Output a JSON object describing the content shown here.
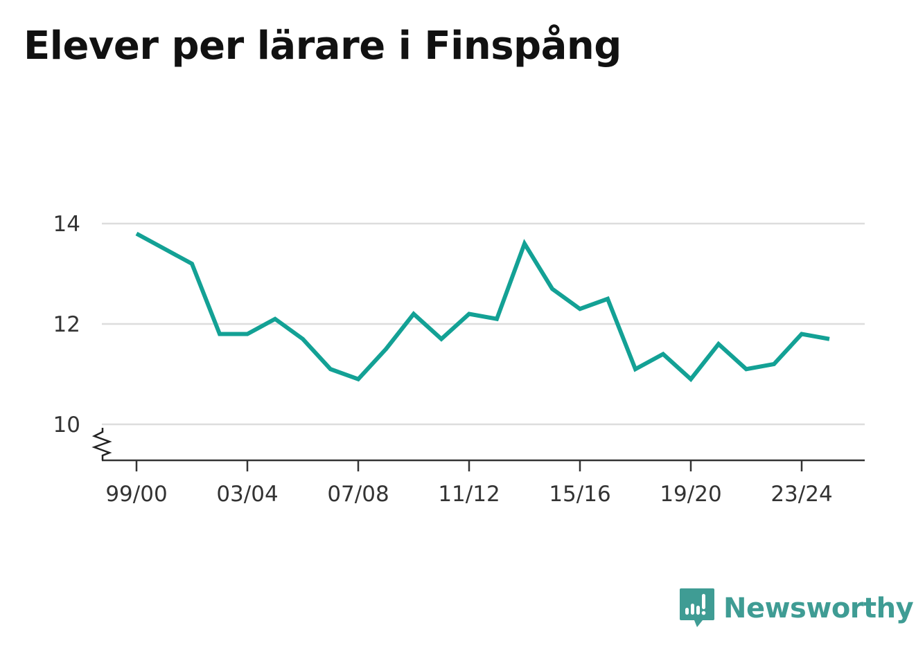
{
  "page": {
    "title": "Elever per lärare i Finspång"
  },
  "brand": {
    "name": "Newsworthy",
    "icon": "bar-chart-badge-icon",
    "color": "#3f9c94"
  },
  "chart_data": {
    "type": "line",
    "title": "Elever per lärare i Finspång",
    "xlabel": "",
    "ylabel": "",
    "x_tick_labels": [
      "99/00",
      "03/04",
      "07/08",
      "11/12",
      "15/16",
      "19/20",
      "23/24"
    ],
    "y_tick_labels": [
      "10",
      "12",
      "14"
    ],
    "y_ticks": [
      10,
      12,
      14
    ],
    "ylim": [
      9.3,
      14.2
    ],
    "y_axis_break": true,
    "grid": true,
    "legend": "none",
    "line_color": "#13a195",
    "grid_color": "#dddddd",
    "x": [
      "99/00",
      "00/01",
      "01/02",
      "02/03",
      "03/04",
      "04/05",
      "05/06",
      "06/07",
      "07/08",
      "08/09",
      "09/10",
      "10/11",
      "11/12",
      "12/13",
      "13/14",
      "14/15",
      "15/16",
      "16/17",
      "17/18",
      "18/19",
      "19/20",
      "20/21",
      "21/22",
      "22/23",
      "23/24",
      "24/25"
    ],
    "series": [
      {
        "values": [
          13.8,
          13.5,
          13.2,
          11.8,
          11.8,
          12.1,
          11.7,
          11.1,
          10.9,
          11.5,
          12.2,
          11.7,
          12.2,
          12.1,
          13.6,
          12.7,
          12.3,
          12.5,
          11.1,
          11.4,
          10.9,
          11.6,
          11.1,
          11.2,
          11.8,
          11.7
        ]
      }
    ]
  }
}
